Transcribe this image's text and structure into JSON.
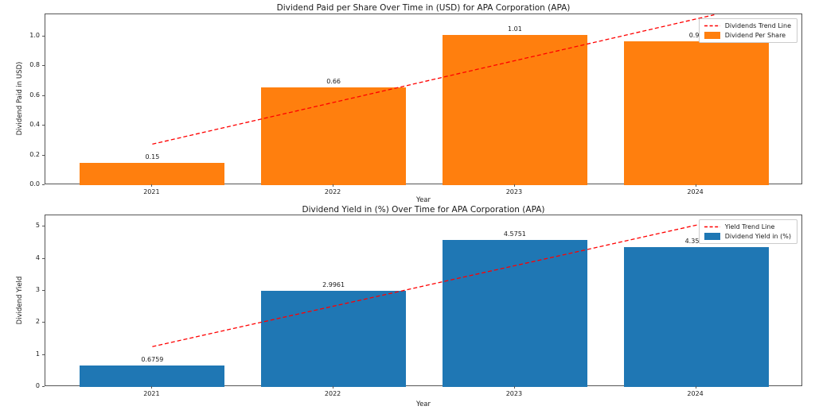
{
  "figure": {
    "background": "#ffffff"
  },
  "colors": {
    "bar_orange": "#ff7f0e",
    "bar_blue": "#1f77b4",
    "trend_red": "#ff0000",
    "spine": "#555555",
    "text": "#1a1a1a"
  },
  "chart_data": [
    {
      "type": "bar",
      "title": "Dividend Paid per Share Over Time in (USD) for APA Corporation (APA)",
      "xlabel": "Year",
      "ylabel": "Dividend Paid in USD)",
      "categories": [
        "2021",
        "2022",
        "2023",
        "2024"
      ],
      "values": [
        0.15,
        0.66,
        1.01,
        0.97
      ],
      "value_labels": [
        "0.15",
        "0.66",
        "1.01",
        "0.97"
      ],
      "bar_color": "#ff7f0e",
      "bar_width": 0.8,
      "yticks": [
        0.0,
        0.2,
        0.4,
        0.6,
        0.8,
        1.0
      ],
      "ytick_labels": [
        "0.0",
        "0.2",
        "0.4",
        "0.6",
        "0.8",
        "1.0"
      ],
      "ylim": [
        0,
        1.15
      ],
      "grid": false,
      "legend_position": "upper right",
      "legend": [
        {
          "sample": "dashed-line",
          "color": "#ff0000",
          "label": "Dividends Trend Line"
        },
        {
          "sample": "patch",
          "color": "#ff7f0e",
          "label": "Dividend Per Share"
        }
      ],
      "trend_line": {
        "style": "dashed",
        "color": "#ff0000",
        "x": [
          0,
          3.1
        ],
        "y": [
          0.276,
          1.147
        ]
      }
    },
    {
      "type": "bar",
      "title": "Dividend Yield in (%) Over Time for APA Corporation (APA)",
      "xlabel": "Year",
      "ylabel": "Dividend Yield",
      "categories": [
        "2021",
        "2022",
        "2023",
        "2024"
      ],
      "values": [
        0.6759,
        2.9961,
        4.5751,
        4.3564
      ],
      "value_labels": [
        "0.6759",
        "2.9961",
        "4.5751",
        "4.3564"
      ],
      "bar_color": "#1f77b4",
      "bar_width": 0.8,
      "yticks": [
        0,
        1,
        2,
        3,
        4,
        5
      ],
      "ytick_labels": [
        "0",
        "1",
        "2",
        "3",
        "4",
        "5"
      ],
      "ylim": [
        0,
        5.35
      ],
      "grid": false,
      "legend_position": "upper right",
      "legend": [
        {
          "sample": "dashed-line",
          "color": "#ff0000",
          "label": "Yield Trend Line"
        },
        {
          "sample": "patch",
          "color": "#1f77b4",
          "label": "Dividend Yield in (%)"
        }
      ],
      "trend_line": {
        "style": "dashed",
        "color": "#ff0000",
        "x": [
          0,
          3.1
        ],
        "y": [
          1.258,
          5.17
        ]
      }
    }
  ]
}
